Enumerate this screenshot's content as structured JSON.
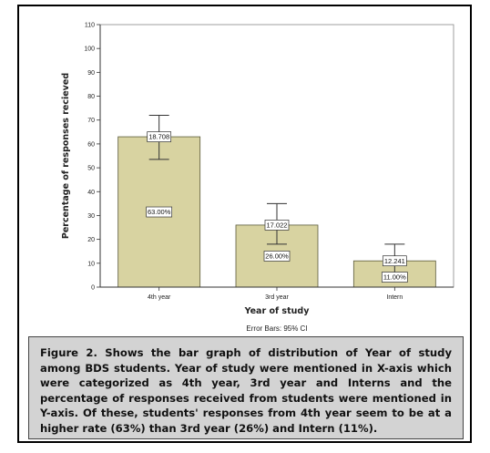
{
  "chart_data": {
    "type": "bar",
    "categories": [
      "4th year",
      "3rd year",
      "Intern"
    ],
    "values": [
      63.0,
      26.0,
      11.0
    ],
    "value_labels": [
      "63.00%",
      "26.00%",
      "11.00%"
    ],
    "error_bar_labels": [
      "18.708",
      "17.022",
      "12.241"
    ],
    "error_bars": [
      {
        "low": 53.5,
        "high": 72.0
      },
      {
        "low": 18.0,
        "high": 35.0
      },
      {
        "low": 5.5,
        "high": 18.0
      }
    ],
    "xlabel": "Year of study",
    "ylabel": "Percentage of responses recieved",
    "ylim": [
      0,
      110
    ],
    "yticks": [
      0,
      10,
      20,
      30,
      40,
      50,
      60,
      70,
      80,
      90,
      100,
      110
    ],
    "footnote": "Error Bars: 95% CI",
    "bar_color": "#d8d3a1",
    "bar_edge_color": "#5a5a3a",
    "grid": false
  },
  "caption": "Figure 2. Shows the bar graph of distribution of Year of study among BDS students. Year of study were mentioned in X-axis which were categorized as 4th year, 3rd year and Interns and the percentage of responses received from students were mentioned in Y-axis. Of these, students' responses from 4th year seem to be at a higher rate (63%) than 3rd year (26%) and Intern (11%)."
}
